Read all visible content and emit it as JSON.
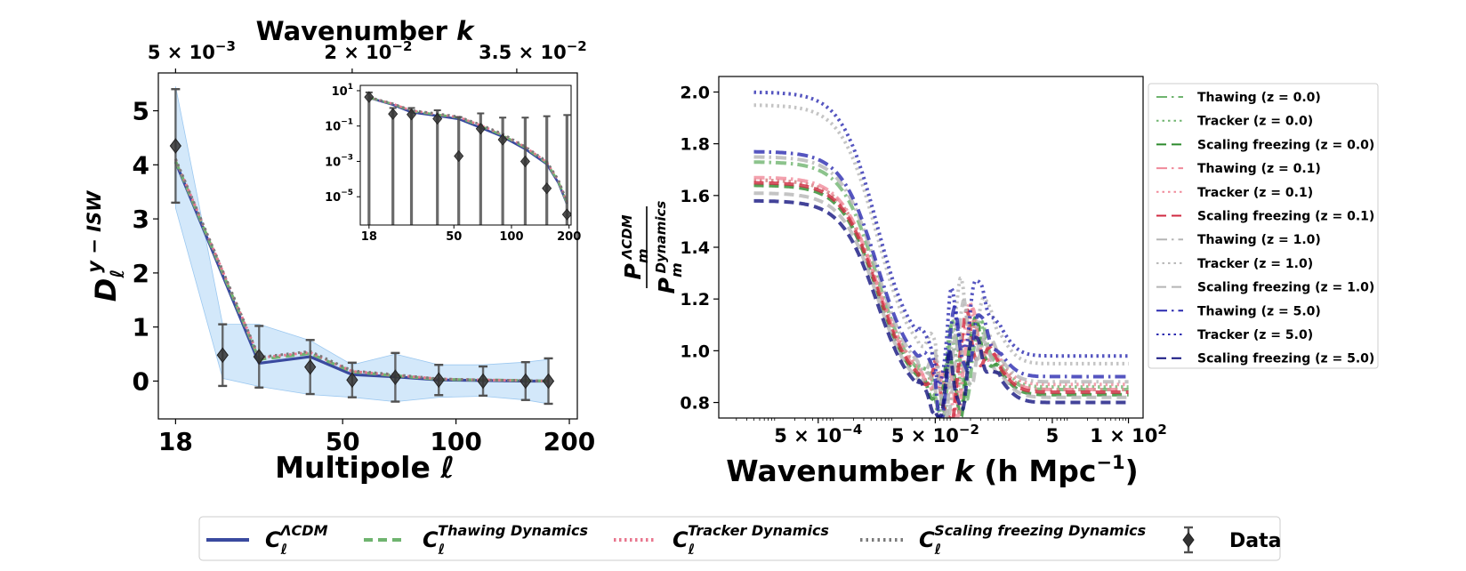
{
  "colors": {
    "lcdm": "#3a4a9f",
    "thawing": "#6fb46f",
    "tracker": "#e8768e",
    "scaling": "#7a7a7a",
    "data": "#505050",
    "band": "#bcdcf8",
    "green_dark": "#2c8a2c",
    "pink": "#f08a9a",
    "red": "#d02a40",
    "grey_light": "#b5b5b5",
    "grey_dark": "#777777",
    "slate": "#5d5d8f",
    "navy": "#2a2ab0",
    "navy_dark": "#141480"
  },
  "chart_data": [
    {
      "id": "left_main",
      "type": "line",
      "title": "",
      "xlabel": "Multipole ℓ",
      "ylabel": "D_ℓ^{y−ISW}",
      "ylabel_parts": {
        "main": "D",
        "sub": "ℓ",
        "sup": "y − ISW"
      },
      "xscale": "log",
      "xlim": [
        16.2,
        210
      ],
      "ylim": [
        -0.7,
        5.7
      ],
      "x_ticks": [
        18,
        50,
        100,
        200
      ],
      "x_tick_labels": [
        "18",
        "50",
        "100",
        "200"
      ],
      "y_ticks": [
        0,
        1,
        2,
        3,
        4,
        5
      ],
      "y_tick_labels": [
        "0",
        "1",
        "2",
        "3",
        "4",
        "5"
      ],
      "top_axis": {
        "label_main": "Wavenumber",
        "label_var": "k",
        "ticks": [
          {
            "at": 18,
            "mantissa": "5",
            "times": "×",
            "base": "10",
            "exp": "−3"
          },
          {
            "at": 53,
            "mantissa": "2",
            "times": "×",
            "base": "10",
            "exp": "−2"
          },
          {
            "at": 145,
            "mantissa": "3.5",
            "times": "×",
            "base": "10",
            "exp": "−2"
          }
        ]
      },
      "x": [
        18,
        30,
        41,
        53,
        69,
        90,
        118,
        153,
        176
      ],
      "data_points": {
        "x": [
          18,
          24,
          30,
          41,
          53,
          69,
          90,
          118,
          153,
          176
        ],
        "y": [
          4.35,
          0.48,
          0.45,
          0.26,
          0.02,
          0.07,
          0.02,
          0.0,
          0.0,
          0.0
        ],
        "yerr": [
          1.05,
          0.57,
          0.57,
          0.5,
          0.32,
          0.45,
          0.28,
          0.27,
          0.35,
          0.42
        ]
      },
      "band": {
        "x": [
          18,
          24,
          30,
          41,
          53,
          69,
          90,
          118,
          153,
          176
        ],
        "lower": [
          3.2,
          0.05,
          -0.1,
          -0.25,
          -0.3,
          -0.38,
          -0.3,
          -0.28,
          -0.35,
          -0.42
        ],
        "upper": [
          5.45,
          1.05,
          1.05,
          0.75,
          0.3,
          0.5,
          0.3,
          0.3,
          0.35,
          0.4
        ]
      },
      "series": [
        {
          "name": "C_ℓ^ΛCDM",
          "values": [
            4.05,
            0.33,
            0.45,
            0.12,
            0.08,
            0.02,
            0.01,
            0.0,
            0.0
          ]
        },
        {
          "name": "C_ℓ^Thawing Dynamics",
          "values": [
            4.07,
            0.4,
            0.51,
            0.17,
            0.1,
            0.03,
            0.02,
            0.01,
            0.0
          ]
        },
        {
          "name": "C_ℓ^Tracker Dynamics",
          "values": [
            4.1,
            0.43,
            0.53,
            0.18,
            0.11,
            0.04,
            0.02,
            0.01,
            0.0
          ]
        },
        {
          "name": "C_ℓ^Scaling freezing Dynamics",
          "values": [
            4.11,
            0.44,
            0.55,
            0.19,
            0.12,
            0.04,
            0.02,
            0.01,
            0.0
          ]
        }
      ]
    },
    {
      "id": "left_inset",
      "type": "line",
      "xscale": "log",
      "yscale": "log",
      "xlim": [
        16.2,
        205
      ],
      "ylim_log10": [
        -6.6,
        1.3
      ],
      "x_ticks": [
        18,
        50,
        100,
        200
      ],
      "x_tick_labels": [
        "18",
        "50",
        "100",
        "200"
      ],
      "y_ticks": [
        {
          "value": 10,
          "base": "10",
          "exp": "1"
        },
        {
          "value": 0.1,
          "base": "10",
          "exp": "−1"
        },
        {
          "value": 0.001,
          "base": "10",
          "exp": "−3"
        },
        {
          "value": 1e-05,
          "base": "10",
          "exp": "−5"
        }
      ],
      "x": [
        18,
        24,
        30,
        41,
        53,
        69,
        90,
        118,
        153,
        176,
        195
      ],
      "series": [
        {
          "name": "ΛCDM",
          "values": [
            4.0,
            1.6,
            0.6,
            0.38,
            0.25,
            0.08,
            0.025,
            0.005,
            0.0007,
            6e-05,
            4e-06
          ]
        },
        {
          "name": "Thawing",
          "values": [
            4.1,
            1.75,
            0.7,
            0.44,
            0.3,
            0.1,
            0.03,
            0.006,
            0.0008,
            7e-05,
            4.5e-06
          ]
        },
        {
          "name": "Tracker",
          "values": [
            4.2,
            1.8,
            0.75,
            0.47,
            0.32,
            0.11,
            0.033,
            0.0066,
            0.0009,
            8e-05,
            5e-06
          ]
        },
        {
          "name": "Scaling freezing",
          "values": [
            4.3,
            1.85,
            0.78,
            0.5,
            0.34,
            0.12,
            0.036,
            0.007,
            0.001,
            9e-05,
            5.5e-06
          ]
        }
      ],
      "data_points": {
        "x": [
          18,
          24,
          30,
          41,
          53,
          69,
          90,
          118,
          153,
          195
        ],
        "y": [
          4.35,
          0.48,
          0.45,
          0.26,
          0.002,
          0.07,
          0.017,
          0.001,
          3e-05,
          1e-06
        ],
        "top": [
          8,
          1.05,
          1.05,
          0.78,
          0.32,
          0.52,
          0.3,
          0.3,
          0.36,
          0.42
        ]
      }
    },
    {
      "id": "right_ratio",
      "type": "line",
      "xlabel_main": "Wavenumber",
      "xlabel_var": "k",
      "xlabel_unit": "(h Mpc",
      "xlabel_unit_exp": "−1",
      "xlabel_close": ")",
      "ylabel_num": {
        "main": "P",
        "sub": "m",
        "sup": "ΛCDM"
      },
      "ylabel_den": {
        "main": "P",
        "sub": "m",
        "sup": "Dynamics"
      },
      "xscale": "log",
      "xlim_log10": [
        -5.0,
        2.25
      ],
      "ylim": [
        0.74,
        2.06
      ],
      "y_ticks": [
        0.8,
        1.0,
        1.2,
        1.4,
        1.6,
        1.8,
        2.0
      ],
      "y_tick_labels": [
        "0.8",
        "1.0",
        "1.2",
        "1.4",
        "1.6",
        "1.8",
        "2.0"
      ],
      "x_ticks": [
        {
          "value": 0.0005,
          "mantissa": "5",
          "times": "×",
          "base": "10",
          "exp": "−4"
        },
        {
          "value": 0.05,
          "mantissa": "5",
          "times": "×",
          "base": "10",
          "exp": "−2"
        },
        {
          "value": 5,
          "mantissa": "5",
          "times": "",
          "base": "",
          "exp": ""
        },
        {
          "value": 100,
          "mantissa": "1",
          "times": "×",
          "base": "10",
          "exp": "2"
        }
      ],
      "series": [
        {
          "name": "Thawing (z = 0.0)",
          "label_main": "Thawing",
          "label_z": "(z = 0.0)",
          "plateau": 1.73,
          "tail": 0.85,
          "style": "dashdot",
          "color": "#6fb46f"
        },
        {
          "name": "Tracker (z = 0.0)",
          "label_main": "Tracker",
          "label_z": "(z = 0.0)",
          "plateau": 1.66,
          "tail": 0.86,
          "style": "dotted",
          "color": "#6fb46f"
        },
        {
          "name": "Scaling freezing (z = 0.0)",
          "label_main": "Scaling freezing",
          "label_z": "(z = 0.0)",
          "plateau": 1.64,
          "tail": 0.83,
          "style": "dashed",
          "color": "#2c8a2c"
        },
        {
          "name": "Thawing (z = 0.1)",
          "label_main": "Thawing",
          "label_z": "(z = 0.1)",
          "plateau": 1.67,
          "tail": 0.85,
          "style": "dashdot",
          "color": "#f08a9a"
        },
        {
          "name": "Tracker (z = 0.1)",
          "label_main": "Tracker",
          "label_z": "(z = 0.1)",
          "plateau": 1.66,
          "tail": 0.87,
          "style": "dotted",
          "color": "#f08a9a"
        },
        {
          "name": "Scaling freezing (z = 0.1)",
          "label_main": "Scaling freezing",
          "label_z": "(z = 0.1)",
          "plateau": 1.65,
          "tail": 0.84,
          "style": "dashed",
          "color": "#d02a40"
        },
        {
          "name": "Thawing (z = 1.0)",
          "label_main": "Thawing",
          "label_z": "(z = 1.0)",
          "plateau": 1.75,
          "tail": 0.88,
          "style": "dashdot",
          "color": "#b5b5b5"
        },
        {
          "name": "Tracker (z = 1.0)",
          "label_main": "Tracker",
          "label_z": "(z = 1.0)",
          "plateau": 1.95,
          "tail": 0.95,
          "style": "dotted",
          "color": "#b5b5b5"
        },
        {
          "name": "Scaling freezing (z = 1.0)",
          "label_main": "Scaling freezing",
          "label_z": "(z = 1.0)",
          "plateau": 1.61,
          "tail": 0.82,
          "style": "dashed",
          "color": "#b5b5b5"
        },
        {
          "name": "Thawing (z = 5.0)",
          "label_main": "Thawing",
          "label_z": "(z = 5.0)",
          "plateau": 1.77,
          "tail": 0.9,
          "style": "dashdot",
          "color": "#2a2ab0"
        },
        {
          "name": "Tracker (z = 5.0)",
          "label_main": "Tracker",
          "label_z": "(z = 5.0)",
          "plateau": 2.0,
          "tail": 0.98,
          "style": "dotted",
          "color": "#2a2ab0"
        },
        {
          "name": "Scaling freezing (z = 5.0)",
          "label_main": "Scaling freezing",
          "label_z": "(z = 5.0)",
          "plateau": 1.58,
          "tail": 0.8,
          "style": "dashed",
          "color": "#141480"
        }
      ],
      "legend_position": "outside-right"
    }
  ],
  "bottom_legend": [
    {
      "id": "lcdm",
      "main": "C",
      "sub": "ℓ",
      "sup": "ΛCDM"
    },
    {
      "id": "thawing",
      "main": "C",
      "sub": "ℓ",
      "sup": "Thawing Dynamics"
    },
    {
      "id": "tracker",
      "main": "C",
      "sub": "ℓ",
      "sup": "Tracker Dynamics"
    },
    {
      "id": "scaling",
      "main": "C",
      "sub": "ℓ",
      "sup": "Scaling freezing Dynamics"
    },
    {
      "id": "data",
      "main": "Data"
    }
  ]
}
